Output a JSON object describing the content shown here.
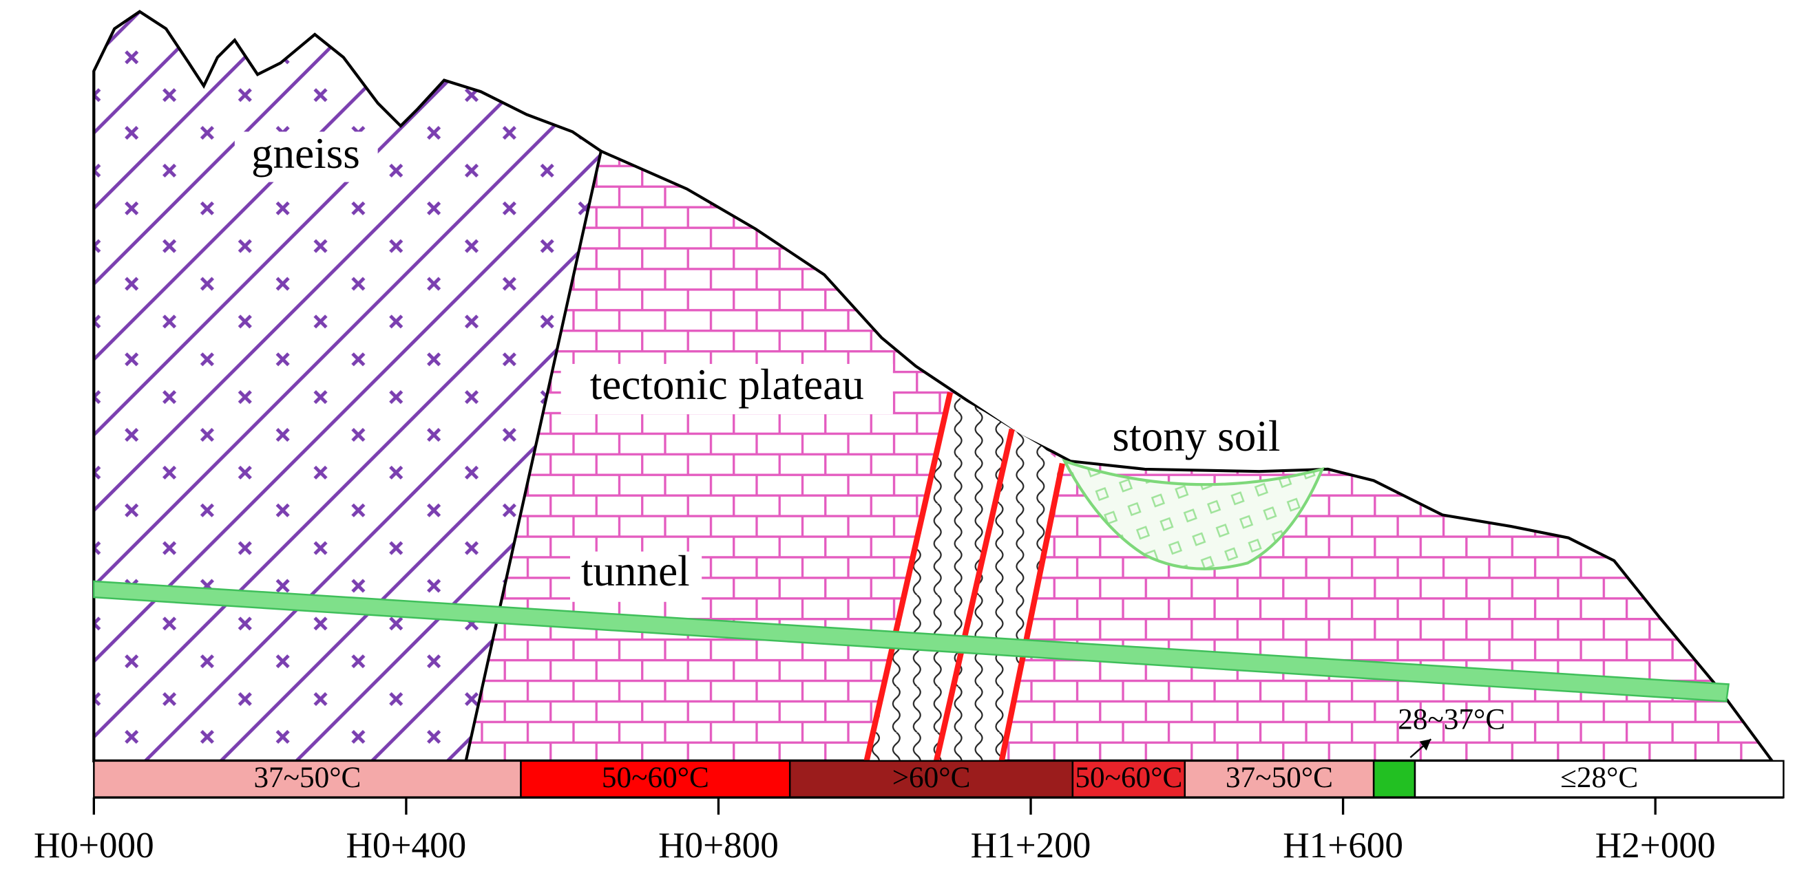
{
  "labels": {
    "gneiss": "gneiss",
    "tectonic_plateau": "tectonic plateau",
    "stony_soil": "stony soil",
    "tunnel": "tunnel"
  },
  "temperature_zones": [
    "37~50°C",
    "50~60°C",
    ">60°C",
    "50~60°C",
    "37~50°C",
    "28~37°C",
    "≤28°C"
  ],
  "chainage_ticks": [
    "H0+000",
    "H0+400",
    "H0+800",
    "H1+200",
    "H1+600",
    "H2+000"
  ]
}
